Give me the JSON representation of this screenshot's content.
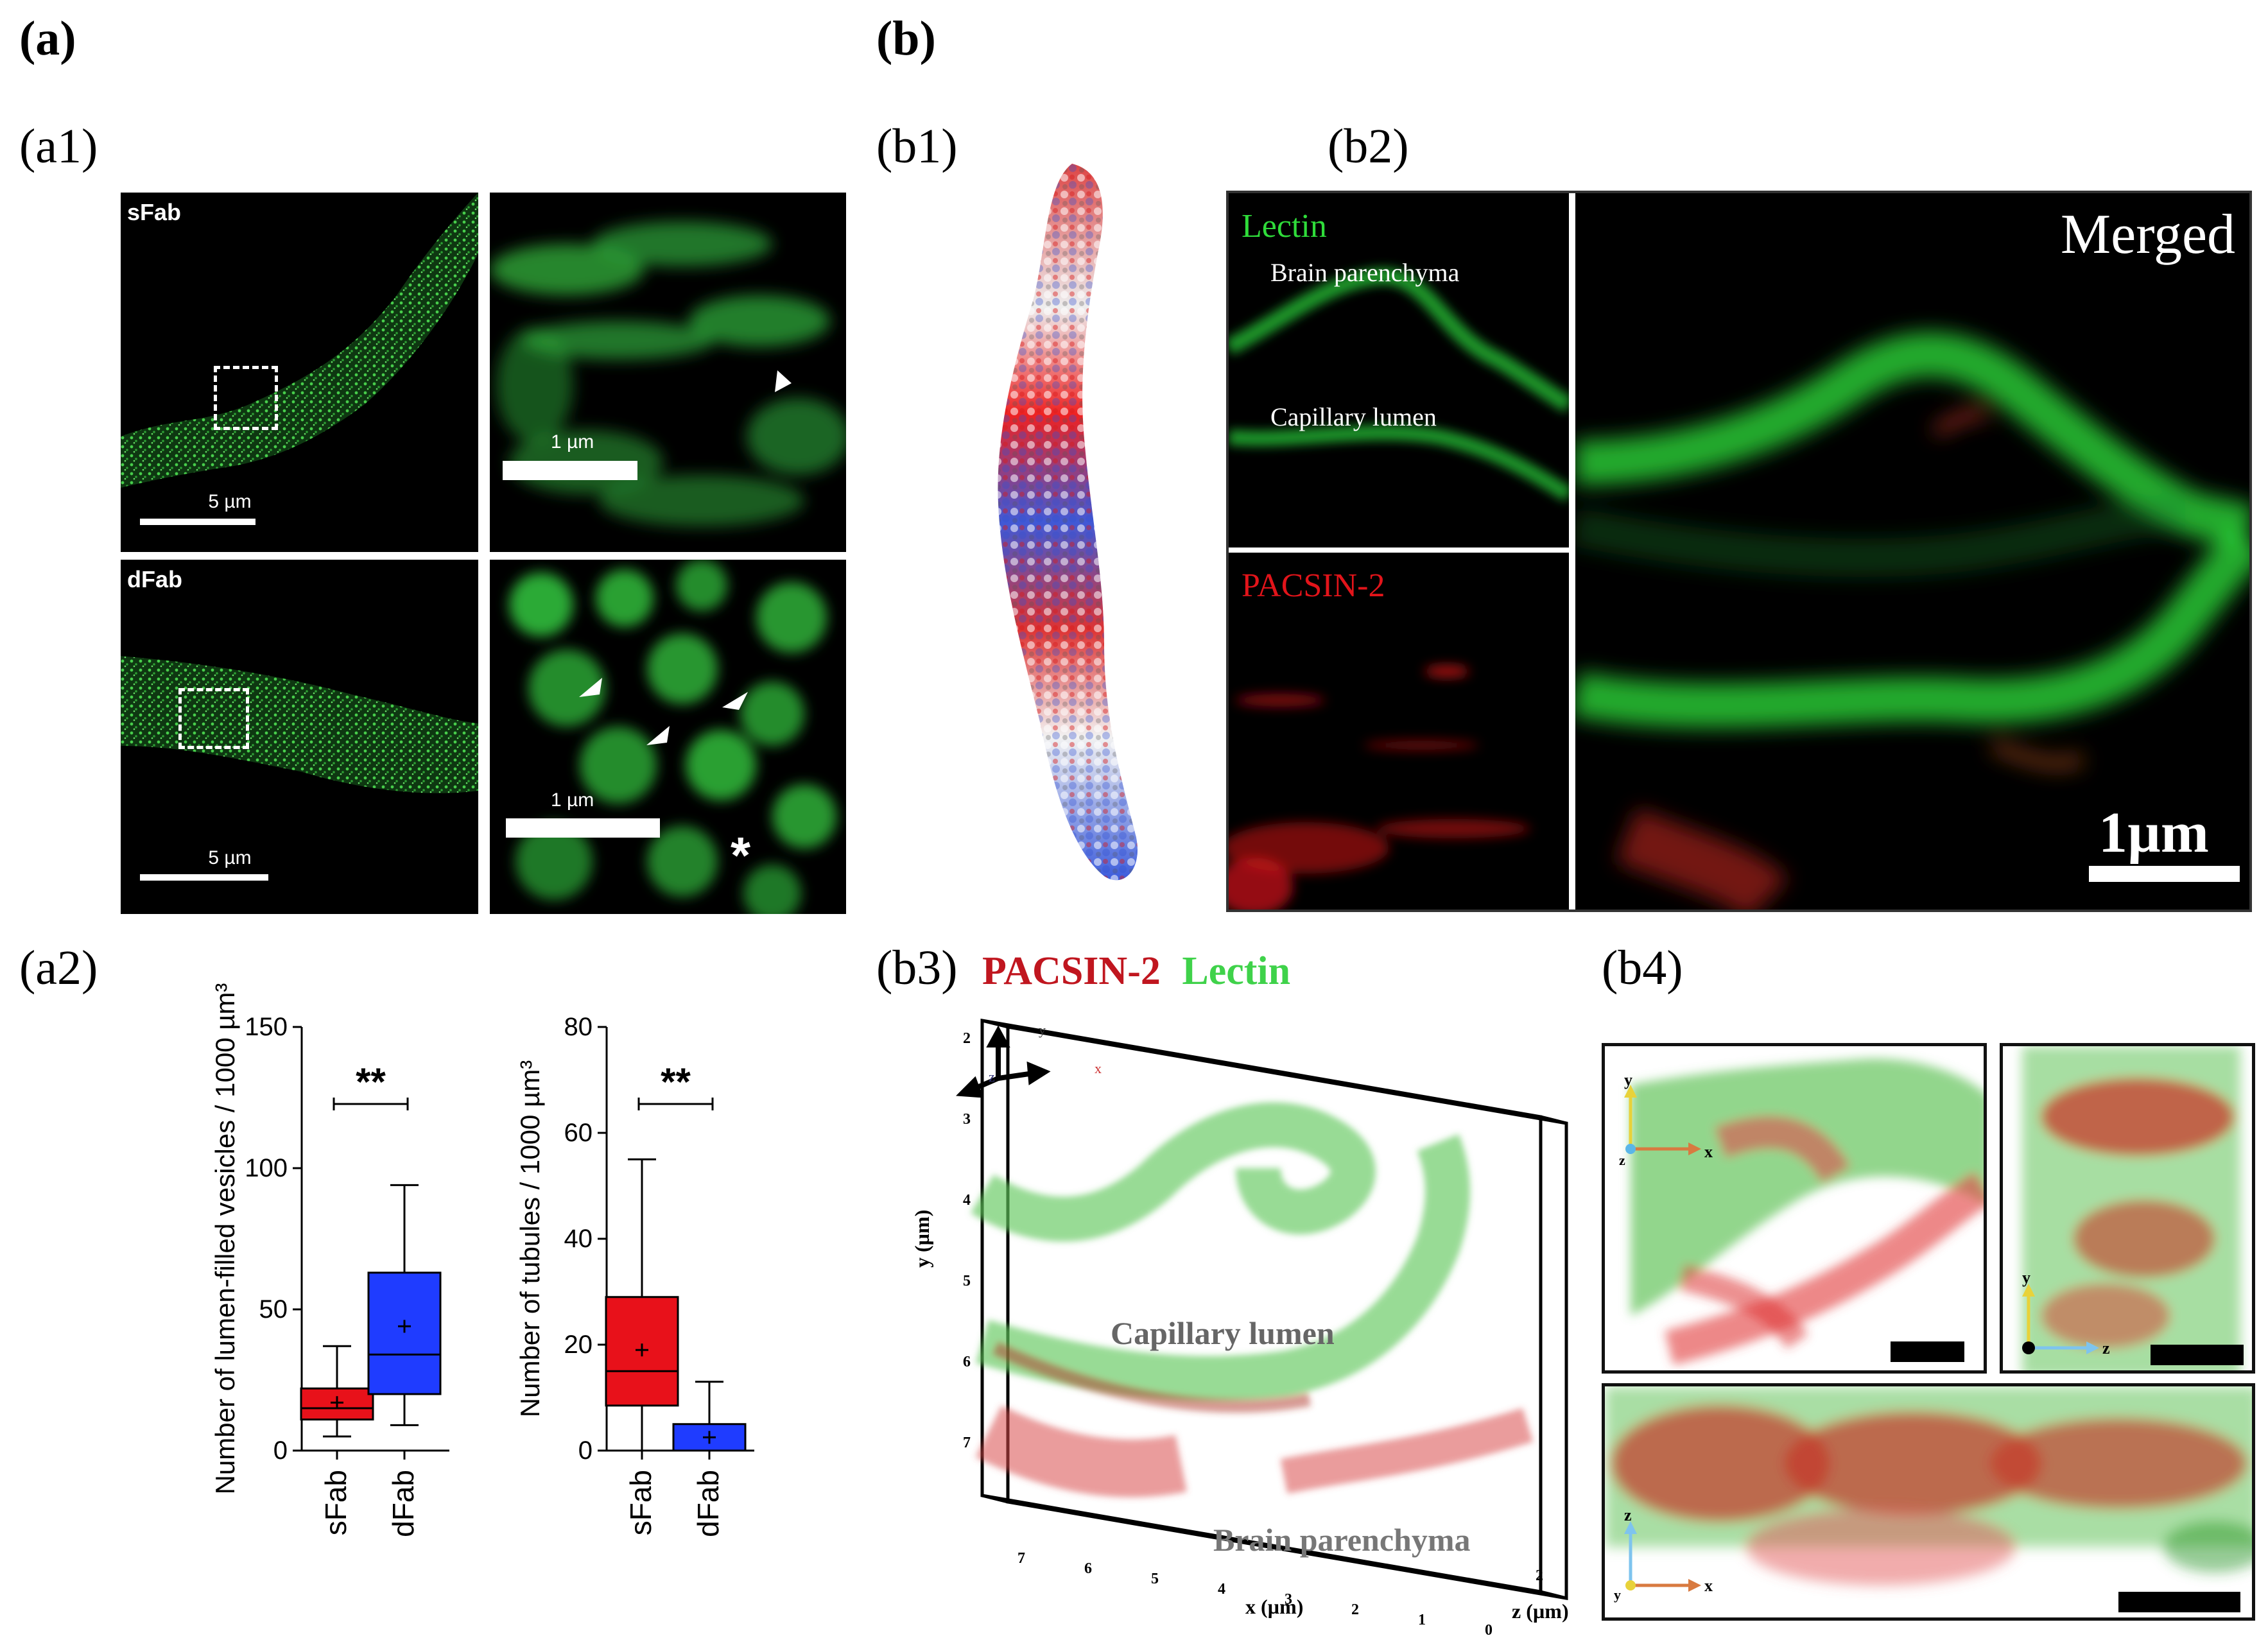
{
  "panels": {
    "a": "(a)",
    "b": "(b)",
    "a1": "(a1)",
    "a2": "(a2)",
    "b1": "(b1)",
    "b2": "(b2)",
    "b3": "(b3)",
    "b4": "(b4)"
  },
  "a1": {
    "top_label": "sFab",
    "bottom_label": "dFab",
    "scale_wide": "5 µm",
    "scale_zoom": "1 µm",
    "asterisk": "*"
  },
  "b2": {
    "lectin": "Lectin",
    "pacsin": "PACSIN-2",
    "merged": "Merged",
    "brain_parenchyma": "Brain parenchyma",
    "capillary_lumen": "Capillary lumen",
    "scale": "1µm"
  },
  "b3": {
    "title_red": "PACSIN-2",
    "title_green": "Lectin",
    "capillary_lumen": "Capillary lumen",
    "brain_parenchyma": "Brain parenchyma",
    "x_label": "x (µm)",
    "y_label": "y (µm)",
    "z_label": "z (µm)",
    "y_ticks": [
      "2",
      "3",
      "4",
      "5",
      "6",
      "7"
    ],
    "x_ticks": [
      "7",
      "6",
      "5",
      "4",
      "3",
      "2",
      "1",
      "0"
    ],
    "z_ticks": [
      "2"
    ],
    "axis_y": "y",
    "axis_x": "x",
    "axis_z": "z"
  },
  "b4": {
    "axis_y": "y",
    "axis_x": "x",
    "axis_z": "z"
  },
  "colors": {
    "red": "#e8111a",
    "blue": "#1f3cff",
    "green": "#39d64b",
    "darkred": "#c0161f"
  },
  "chart_data": [
    {
      "type": "box",
      "ylabel": "Number of lumen-filled vesicles / 1000 µm³",
      "categories": [
        "sFab",
        "dFab"
      ],
      "ylim": [
        0,
        150
      ],
      "yticks": [
        "0",
        "50",
        "100",
        "150"
      ],
      "significance": "**",
      "boxes": [
        {
          "name": "sFab",
          "min": 5,
          "q1": 11,
          "median": 15,
          "q3": 22,
          "max": 37,
          "mean": 17,
          "color": "#e8111a"
        },
        {
          "name": "dFab",
          "min": 9,
          "q1": 20,
          "median": 34,
          "q3": 63,
          "max": 94,
          "mean": 44,
          "color": "#1f3cff"
        }
      ]
    },
    {
      "type": "box",
      "ylabel": "Number of tubules / 1000 µm³",
      "categories": [
        "sFab",
        "dFab"
      ],
      "ylim": [
        0,
        80
      ],
      "yticks": [
        "0",
        "20",
        "40",
        "60",
        "80"
      ],
      "significance": "**",
      "boxes": [
        {
          "name": "sFab",
          "min": 0,
          "q1": 8.5,
          "median": 15,
          "q3": 29,
          "max": 55,
          "mean": 19,
          "color": "#e8111a"
        },
        {
          "name": "dFab",
          "min": 0,
          "q1": 0,
          "median": 0,
          "q3": 5,
          "max": 13,
          "mean": 2.5,
          "color": "#1f3cff"
        }
      ]
    }
  ]
}
